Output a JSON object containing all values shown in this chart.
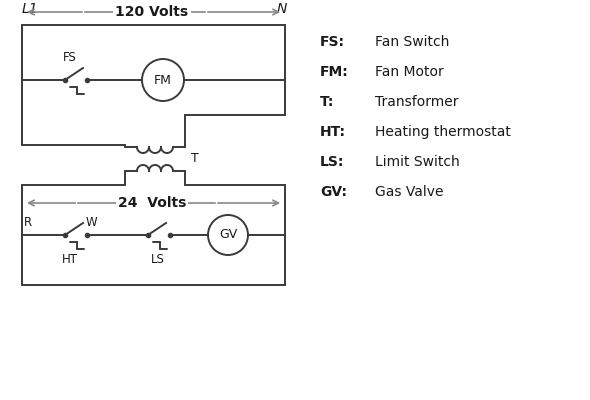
{
  "bg_color": "#ffffff",
  "line_color": "#3a3a3a",
  "arrow_color": "#888888",
  "text_color": "#1a1a1a",
  "legend": [
    [
      "FS:",
      "Fan Switch"
    ],
    [
      "FM:",
      "Fan Motor"
    ],
    [
      "T:",
      "Transformer"
    ],
    [
      "HT:",
      "Heating thermostat"
    ],
    [
      "LS:",
      "Limit Switch"
    ],
    [
      "GV:",
      "Gas Valve"
    ]
  ],
  "volts120_label": "120 Volts",
  "volts24_label": "24  Volts",
  "L1_label": "L1",
  "N_label": "N",
  "lw": 1.4,
  "arrow_lw": 1.2,
  "fs_label": "FS",
  "fm_label": "FM",
  "t_label": "T",
  "r_label": "R",
  "w_label": "W",
  "ht_label": "HT",
  "ls_label": "LS",
  "gv_label": "GV"
}
